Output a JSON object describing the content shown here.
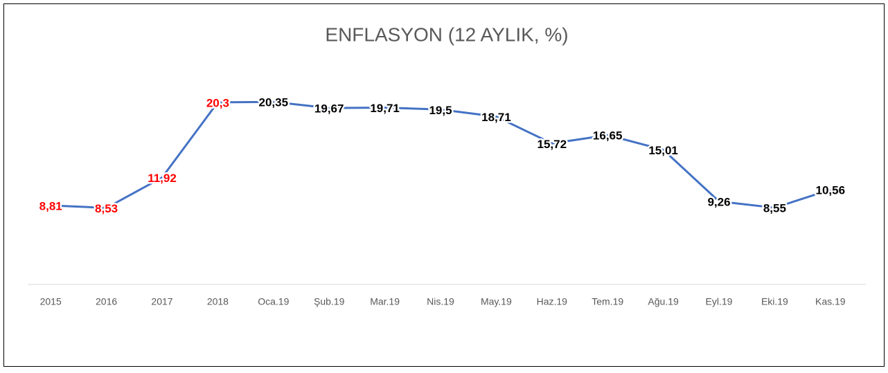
{
  "chart_data": {
    "type": "line",
    "title": "ENFLASYON (12 AYLIK, %)",
    "categories": [
      "2015",
      "2016",
      "2017",
      "2018",
      "Oca.19",
      "Şub.19",
      "Mar.19",
      "Nis.19",
      "May.19",
      "Haz.19",
      "Tem.19",
      "Ağu.19",
      "Eyl.19",
      "Eki.19",
      "Kas.19"
    ],
    "values": [
      8.81,
      8.53,
      11.92,
      20.3,
      20.35,
      19.67,
      19.71,
      19.5,
      18.71,
      15.72,
      16.65,
      15.01,
      9.26,
      8.55,
      10.56
    ],
    "value_labels": [
      "8,81",
      "8,53",
      "11,92",
      "20,3",
      "20,35",
      "19,67",
      "19,71",
      "19,5",
      "18,71",
      "15,72",
      "16,65",
      "15,01",
      "9,26",
      "8,55",
      "10,56"
    ],
    "value_label_colors": [
      "#ff0000",
      "#ff0000",
      "#ff0000",
      "#ff0000",
      "#000000",
      "#000000",
      "#000000",
      "#000000",
      "#000000",
      "#000000",
      "#000000",
      "#000000",
      "#000000",
      "#000000",
      "#000000"
    ],
    "color": "#4472c4",
    "ylim": [
      0,
      25
    ]
  }
}
